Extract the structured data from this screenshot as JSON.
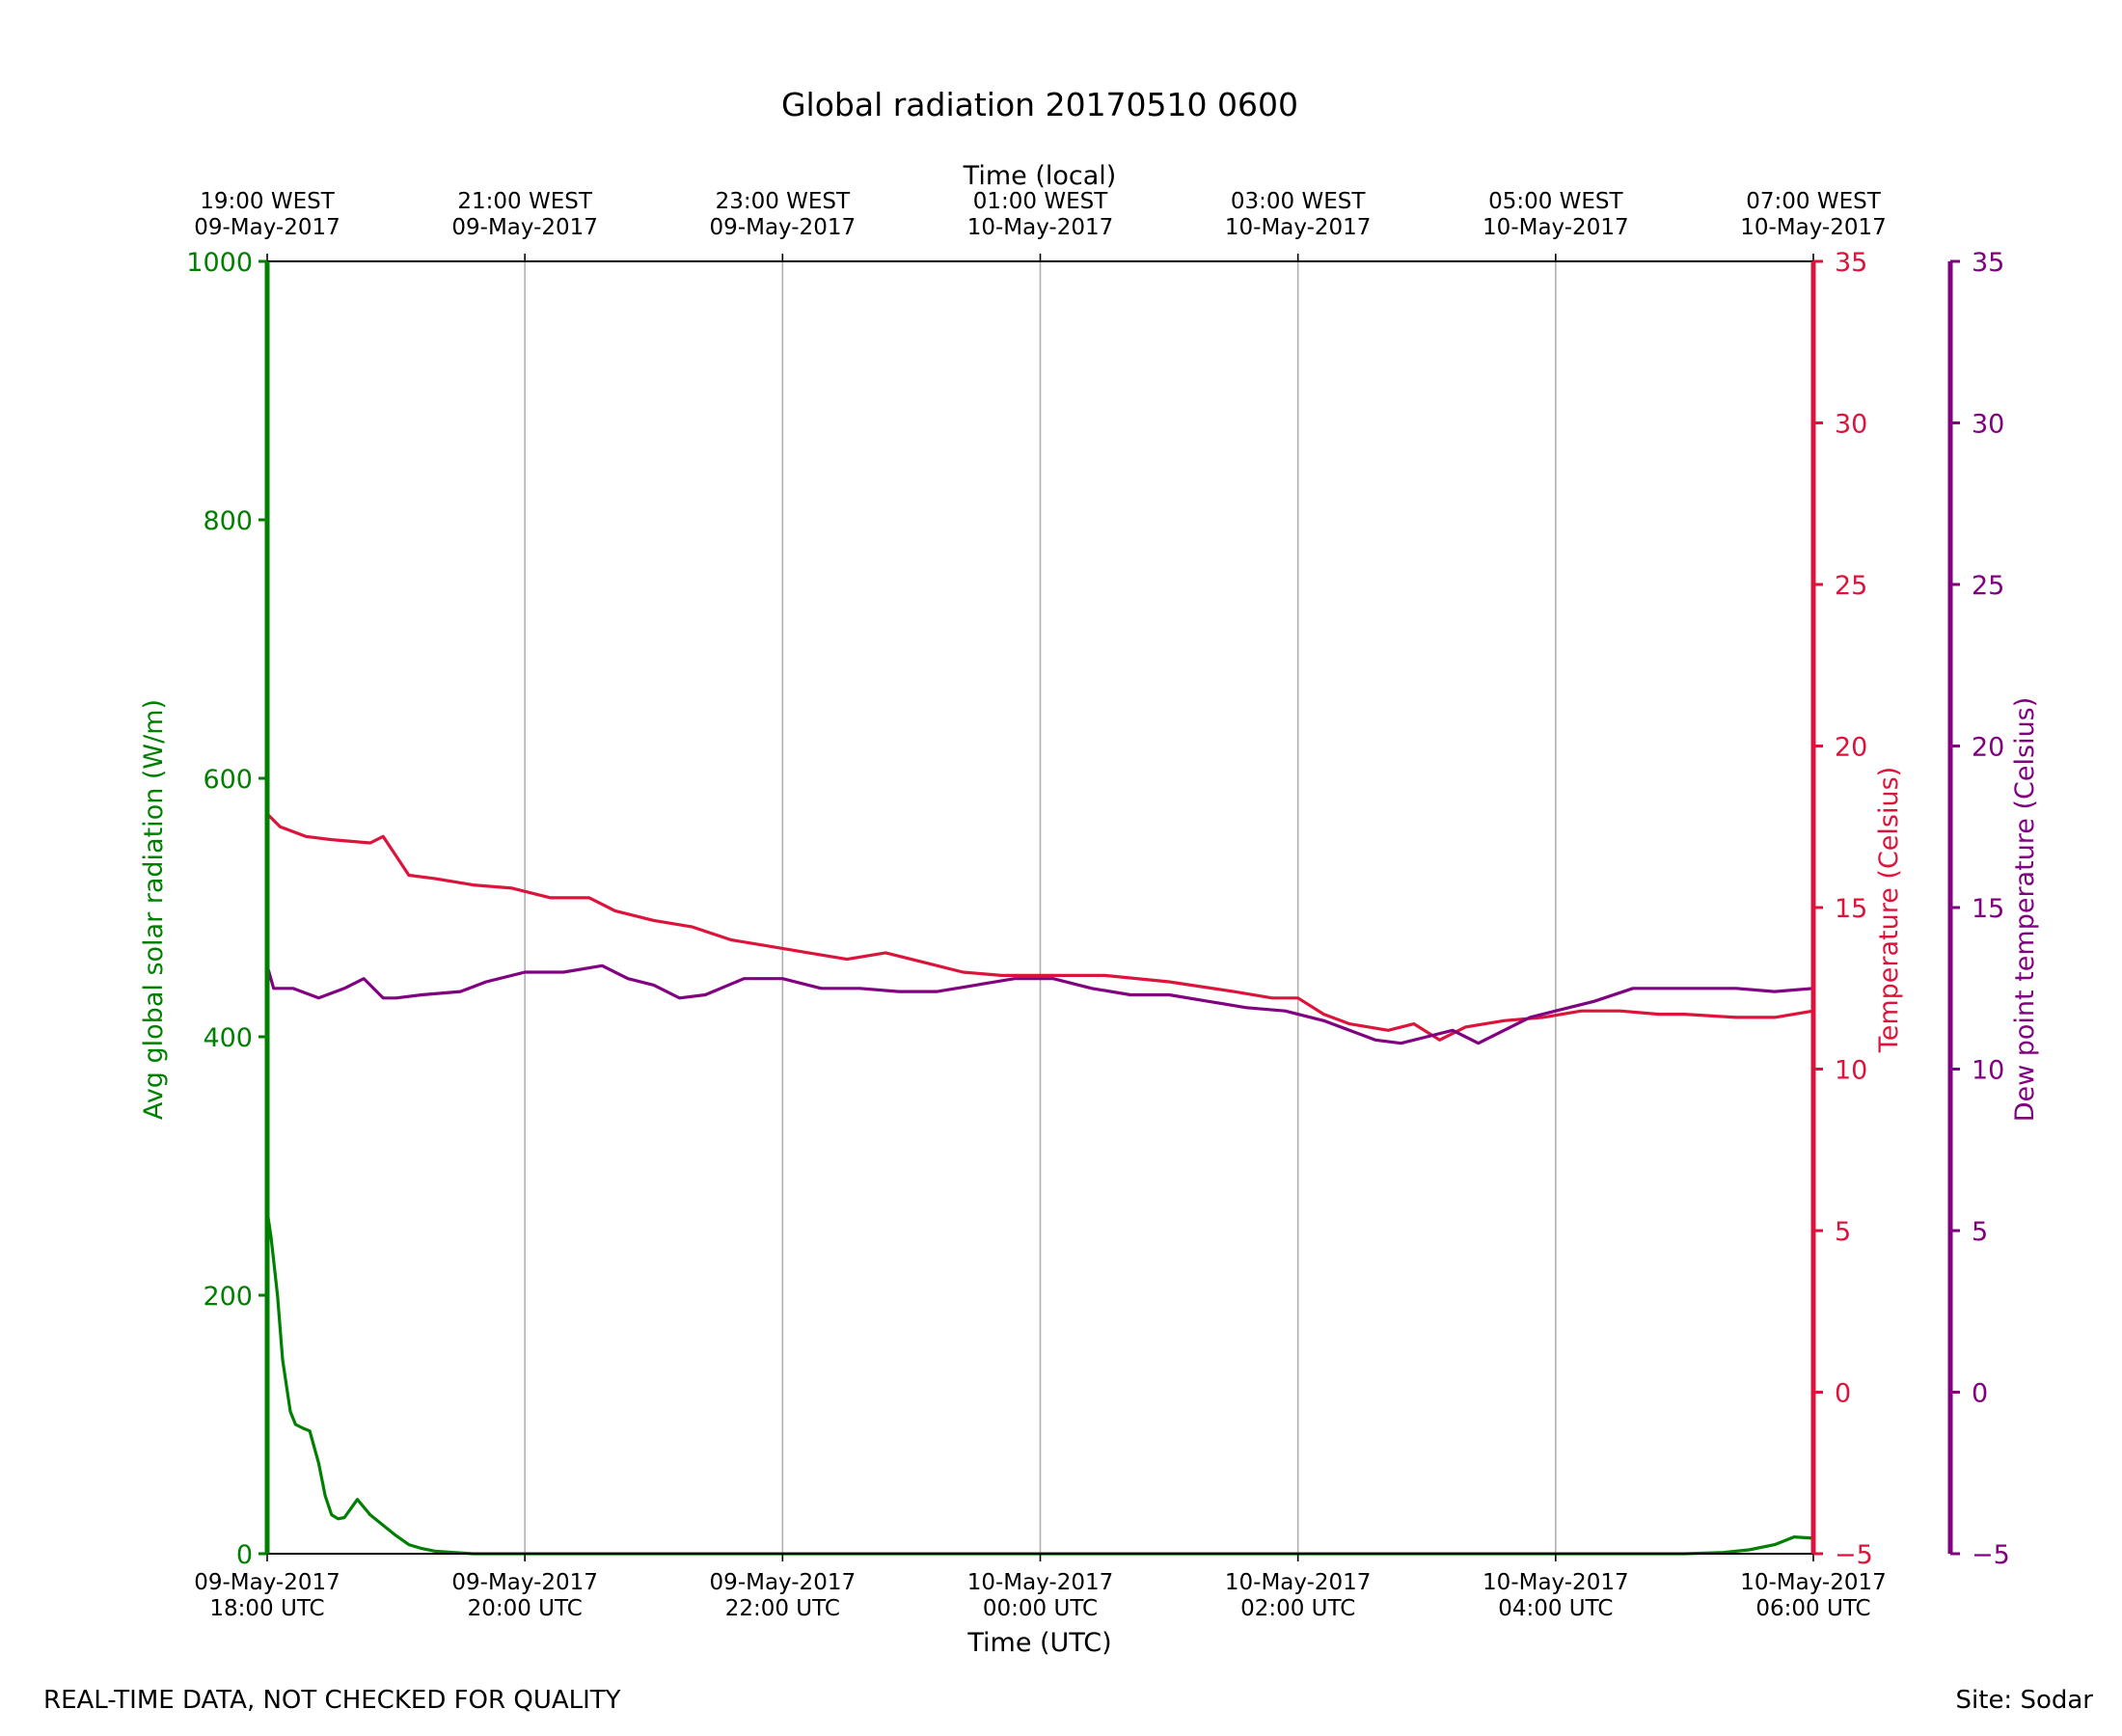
{
  "colors": {
    "radiation": "#008000",
    "temperature": "#DC143C",
    "dewpoint": "#800080",
    "grid": "#b0b0b0",
    "axis": "#000000"
  },
  "footer": {
    "quality_note": "REAL-TIME DATA, NOT CHECKED FOR QUALITY",
    "site": "Site: Sodar"
  },
  "chart_data": {
    "type": "line",
    "title": "Global radiation 20170510 0600",
    "xlabel": "Time (UTC)",
    "xlabel_top": "Time (local)",
    "x_range_hours_utc": [
      "09-May-2017 18:00",
      "10-May-2017 06:00"
    ],
    "x_ticks_bottom": [
      {
        "h": 0,
        "line1": "09-May-2017",
        "line2": "18:00 UTC"
      },
      {
        "h": 2,
        "line1": "09-May-2017",
        "line2": "20:00 UTC"
      },
      {
        "h": 4,
        "line1": "09-May-2017",
        "line2": "22:00 UTC"
      },
      {
        "h": 6,
        "line1": "10-May-2017",
        "line2": "00:00 UTC"
      },
      {
        "h": 8,
        "line1": "10-May-2017",
        "line2": "02:00 UTC"
      },
      {
        "h": 10,
        "line1": "10-May-2017",
        "line2": "04:00 UTC"
      },
      {
        "h": 12,
        "line1": "10-May-2017",
        "line2": "06:00 UTC"
      }
    ],
    "x_ticks_top": [
      {
        "h": 0,
        "line1": "19:00 WEST",
        "line2": "09-May-2017"
      },
      {
        "h": 2,
        "line1": "21:00 WEST",
        "line2": "09-May-2017"
      },
      {
        "h": 4,
        "line1": "23:00 WEST",
        "line2": "09-May-2017"
      },
      {
        "h": 6,
        "line1": "01:00 WEST",
        "line2": "10-May-2017"
      },
      {
        "h": 8,
        "line1": "03:00 WEST",
        "line2": "10-May-2017"
      },
      {
        "h": 10,
        "line1": "05:00 WEST",
        "line2": "10-May-2017"
      },
      {
        "h": 12,
        "line1": "07:00 WEST",
        "line2": "10-May-2017"
      }
    ],
    "grid": "vertical",
    "axes": {
      "radiation": {
        "label": "Avg global solar radiation (W/m)",
        "ylim": [
          0,
          1000
        ],
        "ticks": [
          0,
          200,
          400,
          600,
          800,
          1000
        ]
      },
      "temperature": {
        "label": "Temperature (Celsius)",
        "ylim": [
          -5,
          35
        ],
        "ticks": [
          -5,
          0,
          5,
          10,
          15,
          20,
          25,
          30,
          35
        ]
      },
      "dewpoint": {
        "label": "Dew point temperature (Celsius)",
        "ylim": [
          -5,
          35
        ],
        "ticks": [
          -5,
          0,
          5,
          10,
          15,
          20,
          25,
          30,
          35
        ]
      }
    },
    "series": [
      {
        "key": "radiation",
        "axis": "radiation",
        "x": [
          0,
          0.03,
          0.08,
          0.12,
          0.18,
          0.22,
          0.28,
          0.33,
          0.4,
          0.45,
          0.5,
          0.55,
          0.6,
          0.65,
          0.7,
          0.8,
          0.9,
          1.0,
          1.1,
          1.2,
          1.3,
          1.45,
          1.6,
          1.8,
          2.0,
          2.5,
          3.0,
          4.0,
          5.0,
          6.0,
          7.0,
          8.0,
          9.0,
          10.0,
          11.0,
          11.3,
          11.5,
          11.7,
          11.85,
          12.0
        ],
        "y": [
          265,
          245,
          200,
          150,
          110,
          100,
          97,
          95,
          70,
          45,
          30,
          27,
          28,
          35,
          42,
          30,
          22,
          14,
          7,
          4,
          2,
          1,
          0,
          0,
          0,
          0,
          0,
          0,
          0,
          0,
          0,
          0,
          0,
          0,
          0,
          1,
          3,
          7,
          13,
          12
        ]
      },
      {
        "key": "temperature",
        "axis": "temperature",
        "x": [
          0,
          0.1,
          0.3,
          0.5,
          0.8,
          0.9,
          1.0,
          1.1,
          1.3,
          1.6,
          1.9,
          2.2,
          2.5,
          2.7,
          3.0,
          3.3,
          3.6,
          3.9,
          4.2,
          4.5,
          4.8,
          5.1,
          5.4,
          5.7,
          6.0,
          6.5,
          7.0,
          7.5,
          7.8,
          8.0,
          8.2,
          8.4,
          8.7,
          8.9,
          9.1,
          9.3,
          9.6,
          9.9,
          10.2,
          10.5,
          10.8,
          11.0,
          11.4,
          11.7,
          12.0
        ],
        "y": [
          17.9,
          17.5,
          17.2,
          17.1,
          17.0,
          17.2,
          16.6,
          16.0,
          15.9,
          15.7,
          15.6,
          15.3,
          15.3,
          14.9,
          14.6,
          14.4,
          14.0,
          13.8,
          13.6,
          13.4,
          13.6,
          13.3,
          13.0,
          12.9,
          12.9,
          12.9,
          12.7,
          12.4,
          12.2,
          12.2,
          11.7,
          11.4,
          11.2,
          11.4,
          10.9,
          11.3,
          11.5,
          11.6,
          11.8,
          11.8,
          11.7,
          11.7,
          11.6,
          11.6,
          11.8
        ]
      },
      {
        "key": "dewpoint",
        "axis": "dewpoint",
        "x": [
          0,
          0.05,
          0.2,
          0.4,
          0.6,
          0.75,
          0.9,
          1.0,
          1.2,
          1.5,
          1.7,
          2.0,
          2.3,
          2.6,
          2.8,
          3.0,
          3.2,
          3.4,
          3.7,
          4.0,
          4.3,
          4.6,
          4.9,
          5.2,
          5.5,
          5.8,
          6.1,
          6.4,
          6.7,
          7.0,
          7.3,
          7.6,
          7.9,
          8.2,
          8.4,
          8.6,
          8.8,
          9.0,
          9.2,
          9.4,
          9.6,
          9.8,
          10.0,
          10.3,
          10.6,
          11.0,
          11.4,
          11.7,
          12.0
        ],
        "y": [
          13.2,
          12.5,
          12.5,
          12.2,
          12.5,
          12.8,
          12.2,
          12.2,
          12.3,
          12.4,
          12.7,
          13.0,
          13.0,
          13.2,
          12.8,
          12.6,
          12.2,
          12.3,
          12.8,
          12.8,
          12.5,
          12.5,
          12.4,
          12.4,
          12.6,
          12.8,
          12.8,
          12.5,
          12.3,
          12.3,
          12.1,
          11.9,
          11.8,
          11.5,
          11.2,
          10.9,
          10.8,
          11.0,
          11.2,
          10.8,
          11.2,
          11.6,
          11.8,
          12.1,
          12.5,
          12.5,
          12.5,
          12.4,
          12.5
        ]
      }
    ]
  }
}
